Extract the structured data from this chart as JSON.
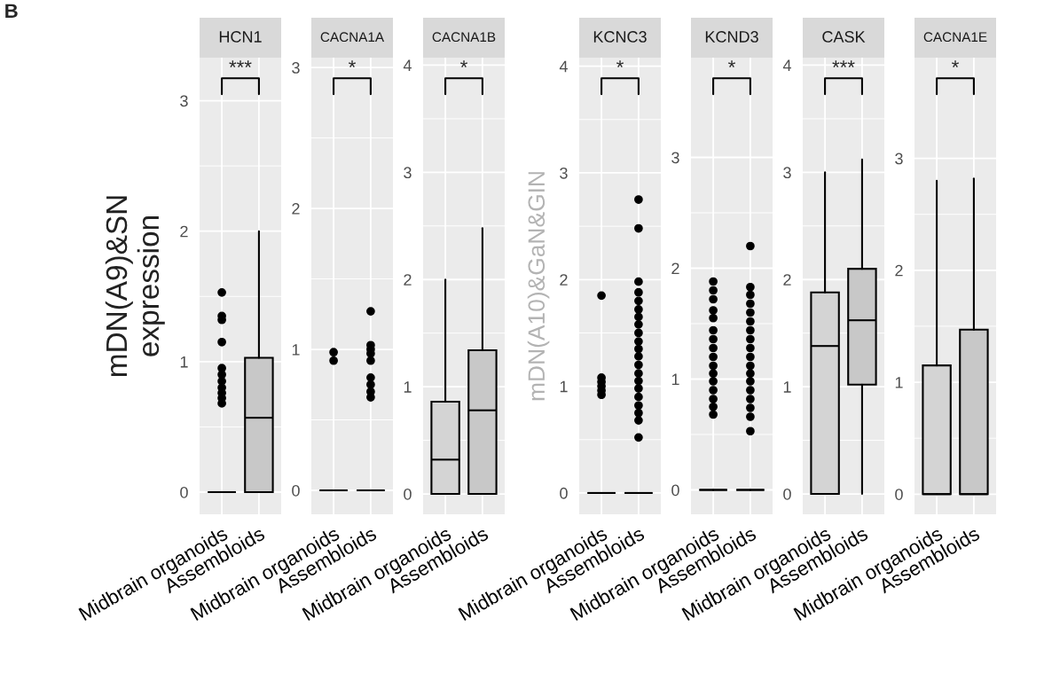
{
  "chart_data": [
    {
      "type": "box",
      "title": "HCN1",
      "ylabel": "mDN(A9)&SN\nexpression",
      "categories": [
        "Midbrain organoids",
        "Assembloids"
      ],
      "colors": [
        null,
        "#c8c8c8"
      ],
      "boxes": [
        {
          "low": 0,
          "q1": 0,
          "median": 0,
          "q3": 0,
          "high": 0,
          "outliers": [
            0.68,
            0.72,
            0.76,
            0.8,
            0.85,
            0.9,
            0.95,
            1.15,
            1.32,
            1.35,
            1.53
          ]
        },
        {
          "low": 0,
          "q1": 0,
          "median": 0.57,
          "q3": 1.03,
          "high": 2.0
        }
      ],
      "ylim": [
        -0.17,
        3.33
      ],
      "yticks": [
        0,
        1,
        2,
        3
      ],
      "grid": true,
      "annotations": [
        "B",
        "***"
      ]
    },
    {
      "type": "box",
      "title": "CACNA1A",
      "categories": [
        "Midbrain organoids",
        "Assembloids"
      ],
      "boxes": [
        {
          "low": 0,
          "q1": 0,
          "median": 0,
          "q3": 0,
          "high": 0,
          "outliers": [
            0.92,
            0.98
          ]
        },
        {
          "low": 0,
          "q1": 0,
          "median": 0,
          "q3": 0,
          "high": 0,
          "outliers": [
            0.66,
            0.7,
            0.75,
            0.8,
            0.92,
            0.97,
            1.0,
            1.03,
            1.27
          ]
        }
      ],
      "ylim": [
        -0.17,
        3.07
      ],
      "yticks": [
        0,
        1,
        2,
        3
      ],
      "grid": true,
      "annotations": [
        "*"
      ]
    },
    {
      "type": "box",
      "title": "CACNA1B",
      "categories": [
        "Midbrain organoids",
        "Assembloids"
      ],
      "colors": [
        "#d4d4d4",
        "#c8c8c8"
      ],
      "boxes": [
        {
          "low": 0,
          "q1": 0,
          "median": 0.32,
          "q3": 0.86,
          "high": 2.0
        },
        {
          "low": 0,
          "q1": 0,
          "median": 0.78,
          "q3": 1.34,
          "high": 2.48
        }
      ],
      "ylim": [
        -0.19,
        4.07
      ],
      "yticks": [
        0,
        1,
        2,
        3,
        4
      ],
      "grid": true,
      "annotations": [
        "*"
      ]
    },
    {
      "type": "box",
      "title": "KCNC3",
      "ylabel": "mDN(A10)&GaN&GIN",
      "categories": [
        "Midbrain organoids",
        "Assembloids"
      ],
      "boxes": [
        {
          "low": 0,
          "q1": 0,
          "median": 0,
          "q3": 0,
          "high": 0,
          "outliers": [
            0.92,
            0.96,
            1.0,
            1.04,
            1.08,
            1.85
          ]
        },
        {
          "low": 0,
          "q1": 0,
          "median": 0,
          "q3": 0,
          "high": 0,
          "outliers": [
            0.52,
            0.68,
            0.75,
            0.82,
            0.9,
            0.98,
            1.05,
            1.12,
            1.2,
            1.28,
            1.35,
            1.42,
            1.5,
            1.58,
            1.65,
            1.72,
            1.8,
            1.88,
            1.98,
            2.48,
            2.75
          ]
        }
      ],
      "ylim": [
        -0.2,
        4.08
      ],
      "yticks": [
        0,
        1,
        2,
        3,
        4
      ],
      "grid": true,
      "annotations": [
        "*"
      ]
    },
    {
      "type": "box",
      "title": "KCND3",
      "categories": [
        "Midbrain organoids",
        "Assembloids"
      ],
      "boxes": [
        {
          "low": 0,
          "q1": 0,
          "median": 0,
          "q3": 0,
          "high": 0,
          "outliers": [
            0.68,
            0.75,
            0.82,
            0.9,
            0.98,
            1.05,
            1.12,
            1.2,
            1.28,
            1.36,
            1.44,
            1.55,
            1.62,
            1.72,
            1.8,
            1.88
          ]
        },
        {
          "low": 0,
          "q1": 0,
          "median": 0,
          "q3": 0,
          "high": 0,
          "outliers": [
            0.53,
            0.66,
            0.74,
            0.82,
            0.9,
            0.98,
            1.05,
            1.12,
            1.2,
            1.28,
            1.36,
            1.44,
            1.52,
            1.6,
            1.68,
            1.76,
            1.83,
            2.2
          ]
        }
      ],
      "ylim": [
        -0.22,
        3.9
      ],
      "yticks": [
        0,
        1,
        2,
        3
      ],
      "grid": true,
      "annotations": [
        "*"
      ]
    },
    {
      "type": "box",
      "title": "CASK",
      "categories": [
        "Midbrain organoids",
        "Assembloids"
      ],
      "colors": [
        "#d4d4d4",
        "#c8c8c8"
      ],
      "boxes": [
        {
          "low": 0,
          "q1": 0,
          "median": 1.38,
          "q3": 1.88,
          "high": 3.0
        },
        {
          "low": 0,
          "q1": 1.02,
          "median": 1.62,
          "q3": 2.1,
          "high": 3.12
        }
      ],
      "ylim": [
        -0.19,
        4.07
      ],
      "yticks": [
        0,
        1,
        2,
        3,
        4
      ],
      "grid": true,
      "annotations": [
        "***"
      ]
    },
    {
      "type": "box",
      "title": "CACNA1E",
      "categories": [
        "Midbrain organoids",
        "Assembloids"
      ],
      "colors": [
        "#d4d4d4",
        "#c8c8c8"
      ],
      "boxes": [
        {
          "low": 0,
          "q1": 0,
          "median": 0,
          "q3": 1.15,
          "high": 2.8
        },
        {
          "low": 0,
          "q1": 0,
          "median": 0,
          "q3": 1.47,
          "high": 2.82
        }
      ],
      "ylim": [
        -0.18,
        3.9
      ],
      "yticks": [
        0,
        1,
        2,
        3
      ],
      "grid": true,
      "annotations": [
        "*"
      ]
    }
  ]
}
